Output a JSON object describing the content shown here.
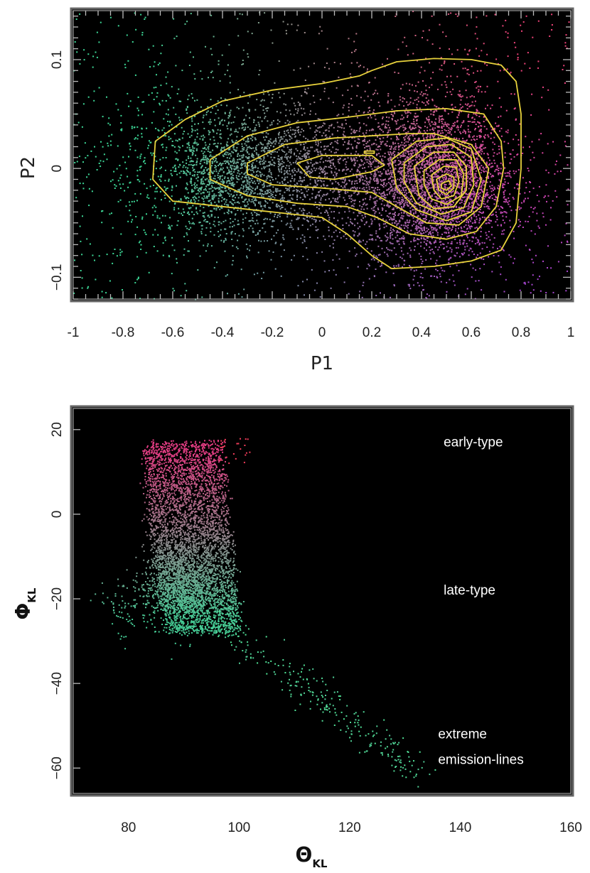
{
  "chart_data": [
    {
      "type": "scatter",
      "title": "",
      "xlabel": "P1",
      "ylabel": "P2",
      "xlim": [
        -1,
        1
      ],
      "ylim": [
        -0.12,
        0.145
      ],
      "x_ticks": [
        -1,
        -0.8,
        -0.6,
        -0.4,
        -0.2,
        0,
        0.2,
        0.4,
        0.6,
        0.8,
        1
      ],
      "x_tick_labels": [
        "-1",
        "-0.8",
        "-0.6",
        "-0.4",
        "-0.2",
        "0",
        "0.2",
        "0.4",
        "0.6",
        "0.8",
        "1"
      ],
      "y_ticks": [
        -0.1,
        0,
        0.1
      ],
      "y_tick_labels": [
        "−0.1",
        "0",
        "0.1"
      ],
      "background": "#000000",
      "point_colors": "position-coded: green at negative P1, pink/red at high P1 and P2, violet/blue at low P2",
      "density_peak": [
        0.5,
        -0.02
      ],
      "contour_color": "#e8d23c",
      "contours": [
        [
          [
            -0.67,
            0.025
          ],
          [
            -0.55,
            0.045
          ],
          [
            -0.4,
            0.062
          ],
          [
            -0.2,
            0.072
          ],
          [
            0.0,
            0.078
          ],
          [
            0.15,
            0.085
          ],
          [
            0.2,
            0.09
          ],
          [
            0.3,
            0.098
          ],
          [
            0.45,
            0.101
          ],
          [
            0.6,
            0.1
          ],
          [
            0.72,
            0.095
          ],
          [
            0.78,
            0.08
          ],
          [
            0.8,
            0.05
          ],
          [
            0.8,
            0.0
          ],
          [
            0.78,
            -0.05
          ],
          [
            0.72,
            -0.075
          ],
          [
            0.6,
            -0.085
          ],
          [
            0.45,
            -0.09
          ],
          [
            0.28,
            -0.092
          ],
          [
            0.2,
            -0.08
          ],
          [
            0.1,
            -0.06
          ],
          [
            0.0,
            -0.045
          ],
          [
            -0.2,
            -0.04
          ],
          [
            -0.4,
            -0.035
          ],
          [
            -0.6,
            -0.03
          ],
          [
            -0.68,
            -0.01
          ],
          [
            -0.67,
            0.025
          ]
        ],
        [
          [
            -0.45,
            0.008
          ],
          [
            -0.3,
            0.03
          ],
          [
            -0.1,
            0.042
          ],
          [
            0.1,
            0.047
          ],
          [
            0.3,
            0.053
          ],
          [
            0.5,
            0.055
          ],
          [
            0.65,
            0.05
          ],
          [
            0.72,
            0.025
          ],
          [
            0.73,
            0.0
          ],
          [
            0.7,
            -0.035
          ],
          [
            0.62,
            -0.058
          ],
          [
            0.5,
            -0.065
          ],
          [
            0.35,
            -0.06
          ],
          [
            0.22,
            -0.045
          ],
          [
            0.1,
            -0.035
          ],
          [
            -0.1,
            -0.032
          ],
          [
            -0.3,
            -0.025
          ],
          [
            -0.45,
            -0.01
          ],
          [
            -0.45,
            0.008
          ]
        ],
        [
          [
            -0.3,
            0.005
          ],
          [
            -0.15,
            0.022
          ],
          [
            0.05,
            0.028
          ],
          [
            0.2,
            0.03
          ],
          [
            0.35,
            0.032
          ],
          [
            0.45,
            0.032
          ],
          [
            0.6,
            0.022
          ],
          [
            0.67,
            0.0
          ],
          [
            0.64,
            -0.035
          ],
          [
            0.55,
            -0.052
          ],
          [
            0.42,
            -0.05
          ],
          [
            0.3,
            -0.035
          ],
          [
            0.2,
            -0.022
          ],
          [
            0.0,
            -0.018
          ],
          [
            -0.2,
            -0.015
          ],
          [
            -0.3,
            -0.005
          ],
          [
            -0.3,
            0.005
          ]
        ],
        [
          [
            -0.1,
            0.005
          ],
          [
            0.0,
            0.012
          ],
          [
            0.2,
            0.012
          ],
          [
            0.25,
            0.003
          ],
          [
            0.2,
            -0.003
          ],
          [
            0.05,
            -0.01
          ],
          [
            -0.05,
            -0.008
          ],
          [
            -0.1,
            0.005
          ]
        ],
        [
          [
            0.17,
            0.016
          ],
          [
            0.21,
            0.016
          ],
          [
            0.21,
            0.014
          ],
          [
            0.17,
            0.014
          ],
          [
            0.17,
            0.016
          ]
        ],
        [
          [
            0.28,
            0.008
          ],
          [
            0.38,
            0.025
          ],
          [
            0.5,
            0.028
          ],
          [
            0.6,
            0.018
          ],
          [
            0.64,
            -0.01
          ],
          [
            0.6,
            -0.04
          ],
          [
            0.5,
            -0.048
          ],
          [
            0.38,
            -0.038
          ],
          [
            0.3,
            -0.018
          ],
          [
            0.28,
            0.008
          ]
        ],
        [
          [
            0.33,
            0.005
          ],
          [
            0.42,
            0.02
          ],
          [
            0.52,
            0.022
          ],
          [
            0.6,
            0.01
          ],
          [
            0.61,
            -0.015
          ],
          [
            0.57,
            -0.036
          ],
          [
            0.48,
            -0.042
          ],
          [
            0.38,
            -0.032
          ],
          [
            0.33,
            -0.012
          ],
          [
            0.33,
            0.005
          ]
        ],
        [
          [
            0.37,
            0.002
          ],
          [
            0.45,
            0.015
          ],
          [
            0.53,
            0.015
          ],
          [
            0.58,
            0.002
          ],
          [
            0.58,
            -0.02
          ],
          [
            0.53,
            -0.035
          ],
          [
            0.45,
            -0.037
          ],
          [
            0.39,
            -0.025
          ],
          [
            0.37,
            0.002
          ]
        ],
        [
          [
            0.41,
            -0.002
          ],
          [
            0.47,
            0.008
          ],
          [
            0.54,
            0.008
          ],
          [
            0.57,
            -0.005
          ],
          [
            0.56,
            -0.025
          ],
          [
            0.5,
            -0.033
          ],
          [
            0.44,
            -0.028
          ],
          [
            0.41,
            -0.015
          ],
          [
            0.41,
            -0.002
          ]
        ],
        [
          [
            0.44,
            -0.006
          ],
          [
            0.49,
            0.002
          ],
          [
            0.54,
            0.001
          ],
          [
            0.55,
            -0.012
          ],
          [
            0.53,
            -0.025
          ],
          [
            0.48,
            -0.028
          ],
          [
            0.45,
            -0.02
          ],
          [
            0.44,
            -0.006
          ]
        ],
        [
          [
            0.46,
            -0.01
          ],
          [
            0.5,
            -0.005
          ],
          [
            0.53,
            -0.008
          ],
          [
            0.53,
            -0.018
          ],
          [
            0.5,
            -0.024
          ],
          [
            0.47,
            -0.02
          ],
          [
            0.46,
            -0.01
          ]
        ],
        [
          [
            0.48,
            -0.014
          ],
          [
            0.51,
            -0.011
          ],
          [
            0.52,
            -0.016
          ],
          [
            0.5,
            -0.02
          ],
          [
            0.48,
            -0.018
          ],
          [
            0.48,
            -0.014
          ]
        ]
      ]
    },
    {
      "type": "scatter",
      "title": "",
      "xlabel": "Θ",
      "xlabel_sub": "KL",
      "ylabel": "Φ",
      "ylabel_sub": "KL",
      "xlim": [
        70,
        160
      ],
      "ylim": [
        -66,
        25
      ],
      "x_ticks": [
        80,
        100,
        120,
        140,
        160
      ],
      "x_tick_labels": [
        "80",
        "100",
        "120",
        "140",
        "160"
      ],
      "y_ticks": [
        -60,
        -40,
        -20,
        0,
        20
      ],
      "y_tick_labels": [
        "−60",
        "−40",
        "−20",
        "0",
        "20"
      ],
      "background": "#000000",
      "point_colors": "pink/red at top (early-type), green in the middle and lower tail (late-type)",
      "annotations": [
        {
          "text": "early-type",
          "x": 137,
          "y": 16
        },
        {
          "text": "late-type",
          "x": 137,
          "y": -19
        },
        {
          "text": "extreme",
          "x": 136,
          "y": -53
        },
        {
          "text": "emission-lines",
          "x": 136,
          "y": -59
        }
      ]
    }
  ]
}
